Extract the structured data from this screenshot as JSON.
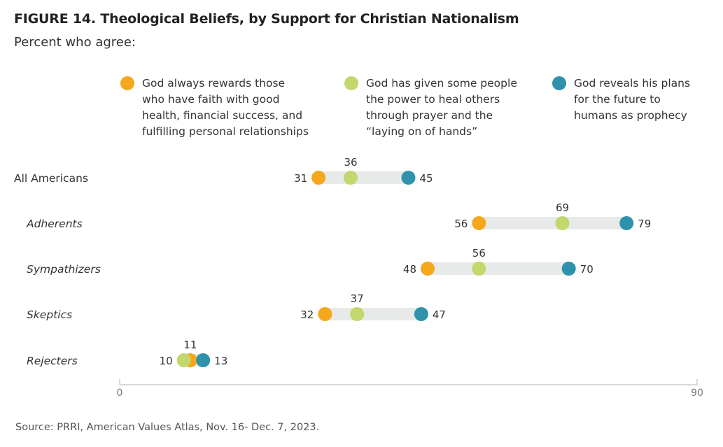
{
  "title": "FIGURE 14.  Theological Beliefs, by Support for Christian Nationalism",
  "subtitle": "Percent who agree:",
  "source": "Source: PRRI, American Values Atlas, Nov. 16- Dec. 7, 2023.",
  "chart_data": {
    "type": "dot-range",
    "xlim": [
      0,
      90
    ],
    "x_ticks": [
      "0",
      "90"
    ],
    "grid": false,
    "legend_position": "top",
    "categories": [
      "All Americans",
      "Adherents",
      "Sympathizers",
      "Skeptics",
      "Rejecters"
    ],
    "category_italic": [
      false,
      true,
      true,
      true,
      true
    ],
    "series": [
      {
        "name": "God always rewards those who have faith with good health, financial success, and fulfilling personal relationships",
        "color": "#F5A81C",
        "values": [
          31,
          56,
          48,
          32,
          11
        ]
      },
      {
        "name": "God has given some people the power to heal others through prayer and the “laying on of hands”",
        "color": "#C2D86C",
        "values": [
          36,
          69,
          56,
          37,
          10
        ]
      },
      {
        "name": "God reveals his plans for the future to humans as prophecy",
        "color": "#2F92AC",
        "values": [
          45,
          79,
          70,
          47,
          13
        ]
      }
    ],
    "legend_lines": [
      [
        "God always rewards those",
        "who have faith with good",
        "health, financial success, and",
        "fulfilling personal relationships"
      ],
      [
        "God has given some people",
        "the power to heal others",
        "through prayer and the",
        "“laying on of hands”"
      ],
      [
        "God reveals his plans",
        "for the future to",
        "humans as prophecy"
      ]
    ]
  }
}
